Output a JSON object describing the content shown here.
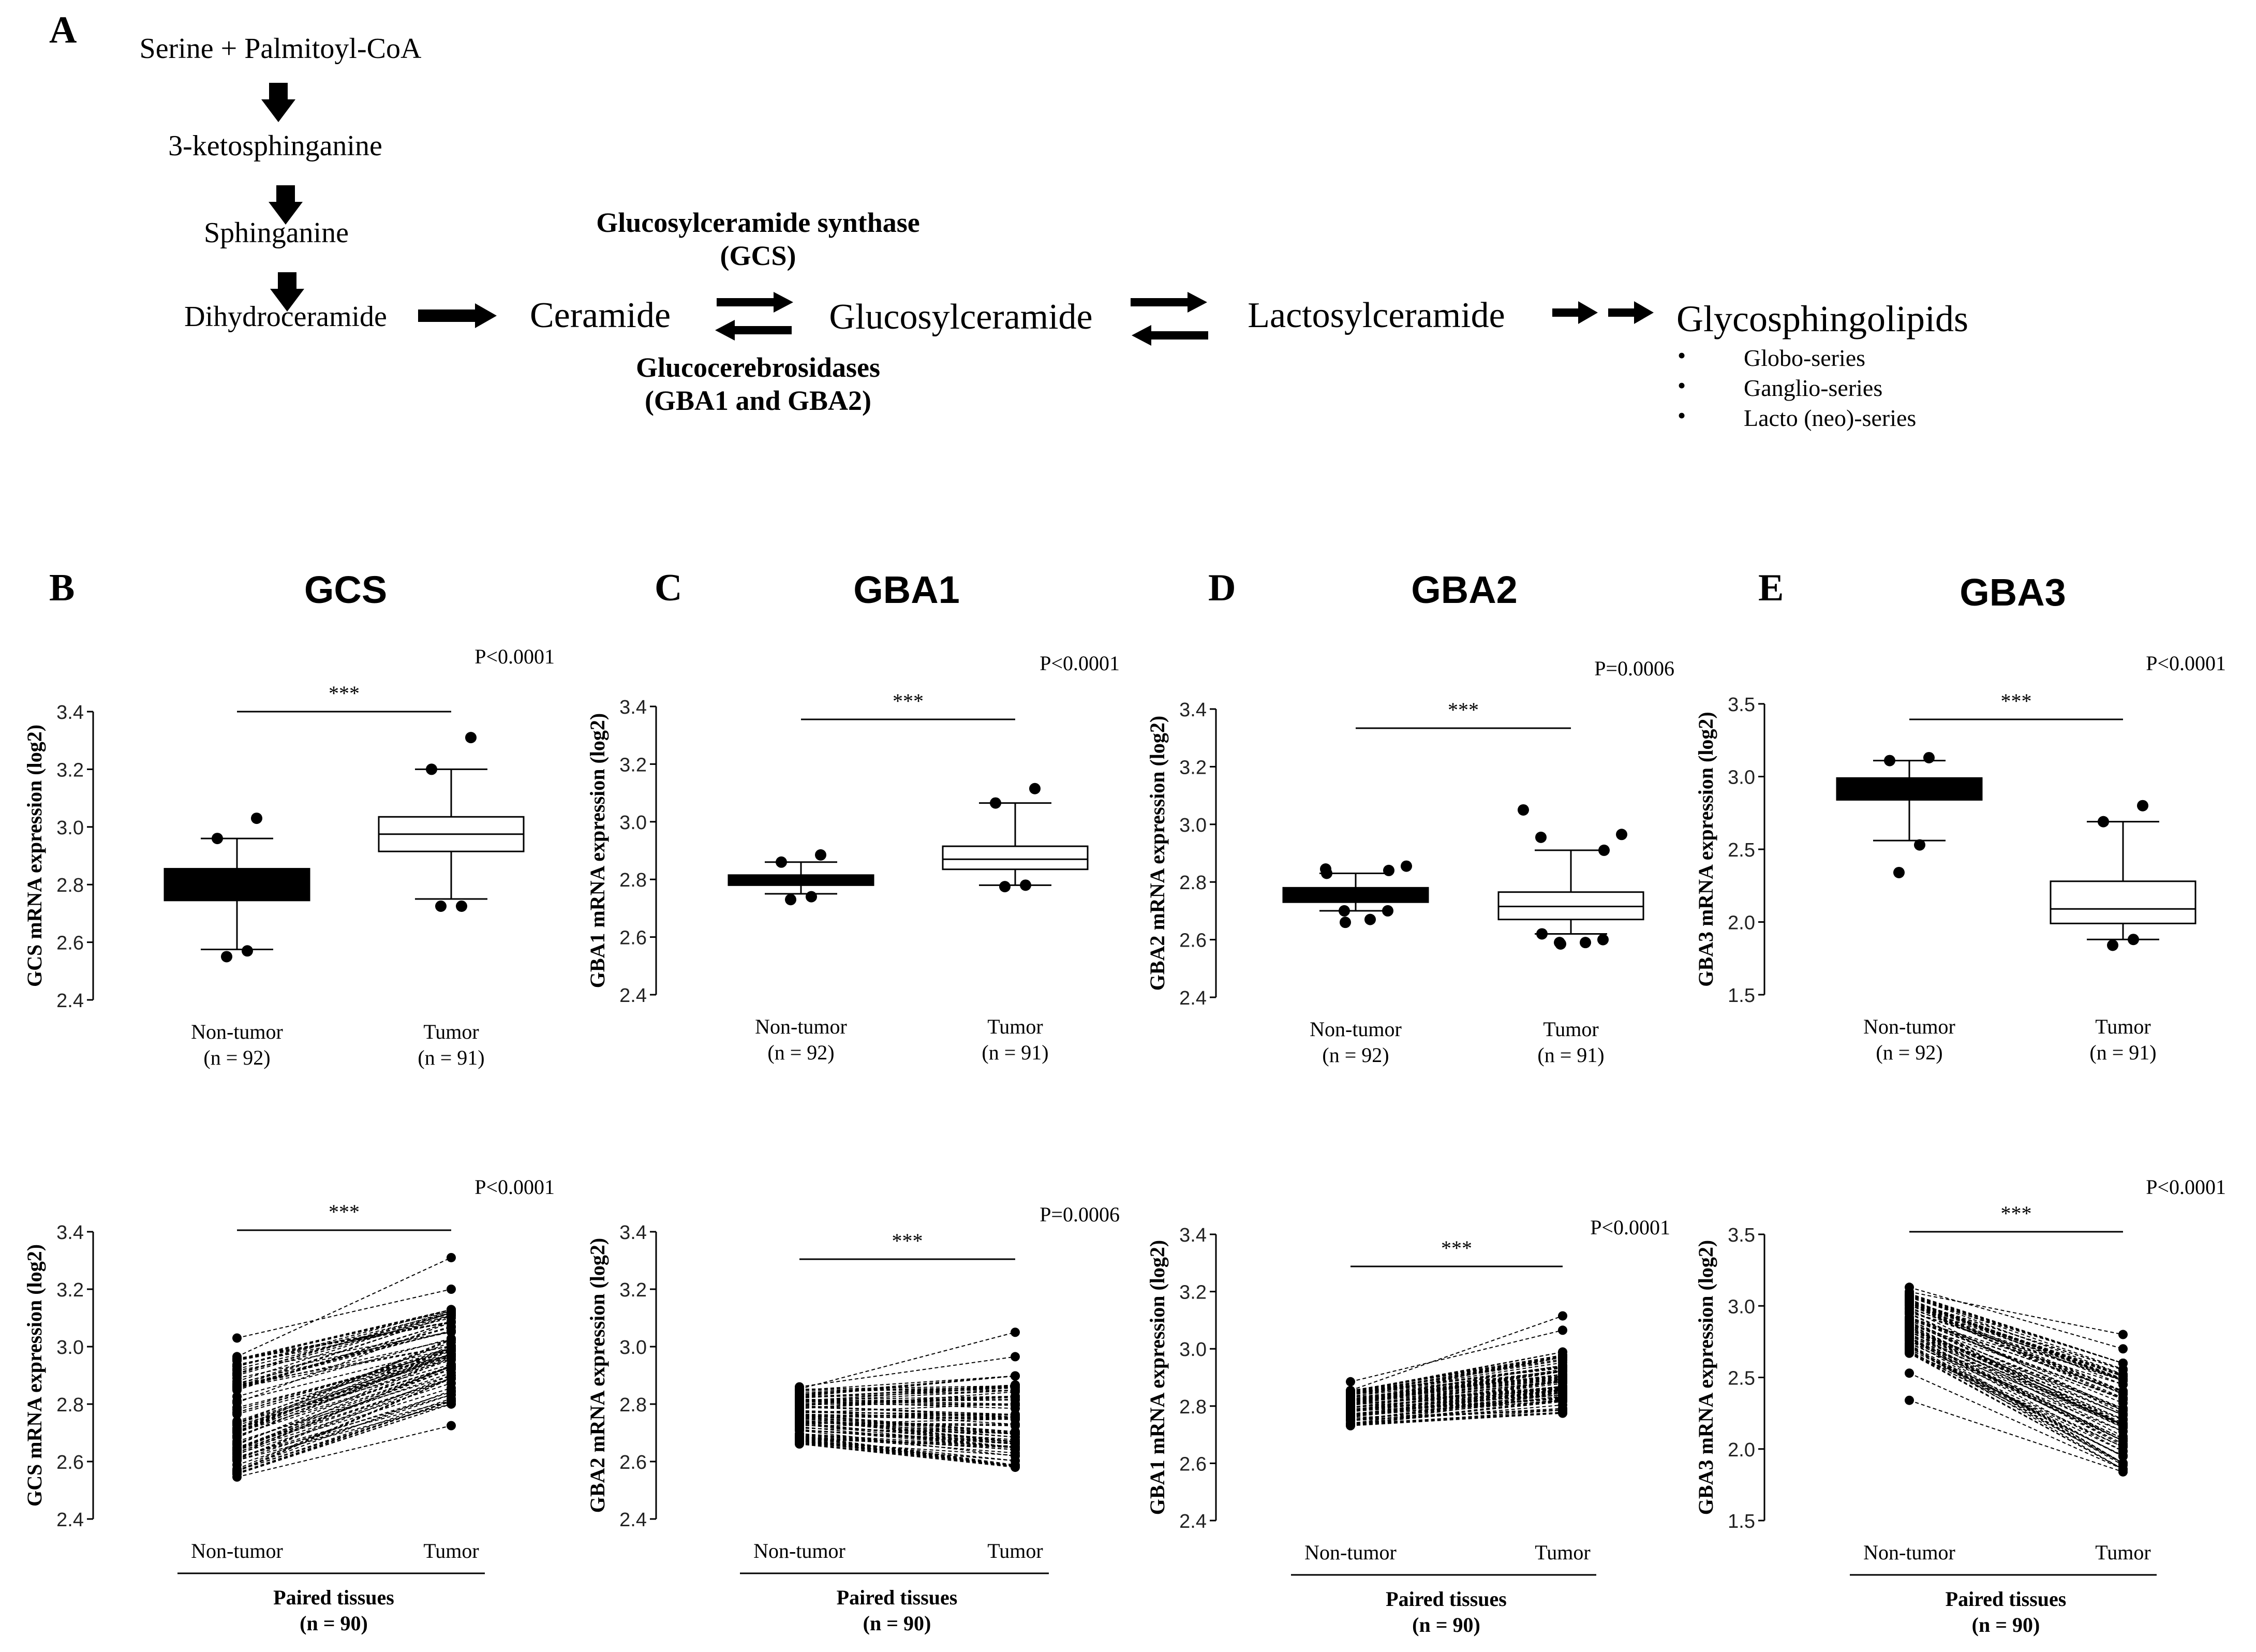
{
  "pathway": {
    "panel_letter": "A",
    "steps": [
      "Serine + Palmitoyl-CoA",
      "3-ketosphinganine",
      "Sphinganine",
      "Dihydroceramide"
    ],
    "ceramide": "Ceramide",
    "glucosylceramide": "Glucosylceramide",
    "lactosylceramide": "Lactosylceramide",
    "glycosphingolipids": "Glycosphingolipids",
    "series": [
      "Globo-series",
      "Ganglio-series",
      "Lacto (neo)-series"
    ],
    "gcs_line1": "Glucosylceramide synthase",
    "gcs_line2": "(GCS)",
    "gba_line1": "Glucocerebrosidases",
    "gba_line2": "(GBA1 and GBA2)",
    "bullet": "•"
  },
  "chart_data": [
    {
      "type": "box",
      "panel": "B",
      "title": "GCS",
      "ylabel": "GCS mRNA expression (log2)",
      "ylim": [
        2.4,
        3.4
      ],
      "yticks": [
        "2.4",
        "2.6",
        "2.8",
        "3.0",
        "3.2",
        "3.4"
      ],
      "pvalue": "P<0.0001",
      "significance": "***",
      "groups": [
        {
          "name": "Non-tumor",
          "n": "(n = 92)",
          "filled": true,
          "whisker_low": 2.575,
          "q1": 2.745,
          "median": 2.8,
          "q3": 2.855,
          "whisker_high": 2.96,
          "outliers": [
            2.55,
            2.57,
            2.96,
            3.03
          ]
        },
        {
          "name": "Tumor",
          "n": "(n = 91)",
          "filled": false,
          "whisker_low": 2.75,
          "q1": 2.915,
          "median": 2.975,
          "q3": 3.035,
          "whisker_high": 3.2,
          "outliers": [
            2.725,
            2.725,
            3.2,
            3.31
          ]
        }
      ]
    },
    {
      "type": "box",
      "panel": "C",
      "title": "GBA1",
      "ylabel": "GBA1 mRNA expression (log2)",
      "ylim": [
        2.4,
        3.4
      ],
      "yticks": [
        "2.4",
        "2.6",
        "2.8",
        "3.0",
        "3.2",
        "3.4"
      ],
      "pvalue": "P<0.0001",
      "significance": "***",
      "groups": [
        {
          "name": "Non-tumor",
          "n": "(n = 92)",
          "filled": true,
          "whisker_low": 2.75,
          "q1": 2.78,
          "median": 2.795,
          "q3": 2.815,
          "whisker_high": 2.86,
          "outliers": [
            2.73,
            2.74,
            2.86,
            2.885
          ]
        },
        {
          "name": "Tumor",
          "n": "(n = 91)",
          "filled": false,
          "whisker_low": 2.78,
          "q1": 2.835,
          "median": 2.87,
          "q3": 2.915,
          "whisker_high": 3.065,
          "outliers": [
            2.775,
            2.78,
            3.065,
            3.115
          ]
        }
      ]
    },
    {
      "type": "box",
      "panel": "D",
      "title": "GBA2",
      "ylabel": "GBA2 mRNA expression (log2)",
      "ylim": [
        2.4,
        3.4
      ],
      "yticks": [
        "2.4",
        "2.6",
        "2.8",
        "3.0",
        "3.2",
        "3.4"
      ],
      "pvalue": "P=0.0006",
      "significance": "***",
      "groups": [
        {
          "name": "Non-tumor",
          "n": "(n = 92)",
          "filled": true,
          "whisker_low": 2.7,
          "q1": 2.73,
          "median": 2.75,
          "q3": 2.78,
          "whisker_high": 2.83,
          "outliers": [
            2.66,
            2.67,
            2.7,
            2.7,
            2.83,
            2.84,
            2.845,
            2.855
          ]
        },
        {
          "name": "Tumor",
          "n": "(n = 91)",
          "filled": false,
          "whisker_low": 2.62,
          "q1": 2.67,
          "median": 2.715,
          "q3": 2.765,
          "whisker_high": 2.91,
          "outliers": [
            2.585,
            2.59,
            2.59,
            2.6,
            2.62,
            2.91,
            2.955,
            2.965,
            3.05
          ]
        }
      ]
    },
    {
      "type": "box",
      "panel": "E",
      "title": "GBA3",
      "ylabel": "GBA3 mRNA expression (log2)",
      "ylim": [
        1.5,
        3.5
      ],
      "yticks": [
        "1.5",
        "2.0",
        "2.5",
        "3.0",
        "3.5"
      ],
      "pvalue": "P<0.0001",
      "significance": "***",
      "groups": [
        {
          "name": "Non-tumor",
          "n": "(n = 92)",
          "filled": true,
          "whisker_low": 2.56,
          "q1": 2.84,
          "median": 2.92,
          "q3": 2.99,
          "whisker_high": 3.11,
          "outliers": [
            2.34,
            2.53,
            3.11,
            3.13
          ]
        },
        {
          "name": "Tumor",
          "n": "(n = 91)",
          "filled": false,
          "whisker_low": 1.88,
          "q1": 1.99,
          "median": 2.09,
          "q3": 2.28,
          "whisker_high": 2.69,
          "outliers": [
            1.84,
            1.88,
            2.69,
            2.8
          ]
        }
      ]
    },
    {
      "type": "paired",
      "panel": "GCS-paired",
      "ylabel": "GCS mRNA expression (log2)",
      "ylim": [
        2.4,
        3.4
      ],
      "yticks": [
        "2.4",
        "2.6",
        "2.8",
        "3.0",
        "3.2",
        "3.4"
      ],
      "pvalue": "P<0.0001",
      "significance": "***",
      "categories": [
        "Non-tumor",
        "Tumor"
      ],
      "footer": "Paired tissues",
      "n": "(n = 90)",
      "left_range": [
        2.545,
        2.97
      ],
      "left_max": 3.03,
      "right_range": [
        2.8,
        3.13
      ],
      "right_min": 2.725,
      "right_extra": [
        3.2,
        3.31
      ]
    },
    {
      "type": "paired",
      "panel": "GBA2-paired",
      "ylabel": "GBA2 mRNA expression (log2)",
      "ylim": [
        2.4,
        3.4
      ],
      "yticks": [
        "2.4",
        "2.6",
        "2.8",
        "3.0",
        "3.2",
        "3.4"
      ],
      "pvalue": "P=0.0006",
      "significance": "***",
      "categories": [
        "Non-tumor",
        "Tumor"
      ],
      "footer": "Paired tissues",
      "n": "(n = 90)",
      "left_range": [
        2.66,
        2.855
      ],
      "left_max": 2.86,
      "right_range": [
        2.58,
        2.9
      ],
      "right_min": 2.58,
      "right_extra": [
        2.965,
        3.05
      ]
    },
    {
      "type": "paired",
      "panel": "GBA1-paired",
      "ylabel": "GBA1 mRNA expression (log2)",
      "ylim": [
        2.4,
        3.4
      ],
      "yticks": [
        "2.4",
        "2.6",
        "2.8",
        "3.0",
        "3.2",
        "3.4"
      ],
      "pvalue": "P<0.0001",
      "significance": "***",
      "categories": [
        "Non-tumor",
        "Tumor"
      ],
      "footer": "Paired tissues",
      "n": "(n = 90)",
      "left_range": [
        2.73,
        2.86
      ],
      "left_max": 2.885,
      "right_range": [
        2.775,
        2.99
      ],
      "right_min": 2.775,
      "right_extra": [
        3.065,
        3.115
      ]
    },
    {
      "type": "paired",
      "panel": "GBA3-paired",
      "ylabel": "GBA3 mRNA expression (log2)",
      "ylim": [
        1.5,
        3.5
      ],
      "yticks": [
        "1.5",
        "2.0",
        "2.5",
        "3.0",
        "3.5"
      ],
      "pvalue": "P<0.0001",
      "significance": "***",
      "categories": [
        "Non-tumor",
        "Tumor"
      ],
      "footer": "Paired tissues",
      "n": "(n = 90)",
      "left_range": [
        2.65,
        3.12
      ],
      "left_max": 3.13,
      "left_extra": [
        2.34,
        2.53
      ],
      "right_range": [
        1.84,
        2.6
      ],
      "right_min": 1.84,
      "right_extra": [
        2.7,
        2.8
      ]
    }
  ]
}
